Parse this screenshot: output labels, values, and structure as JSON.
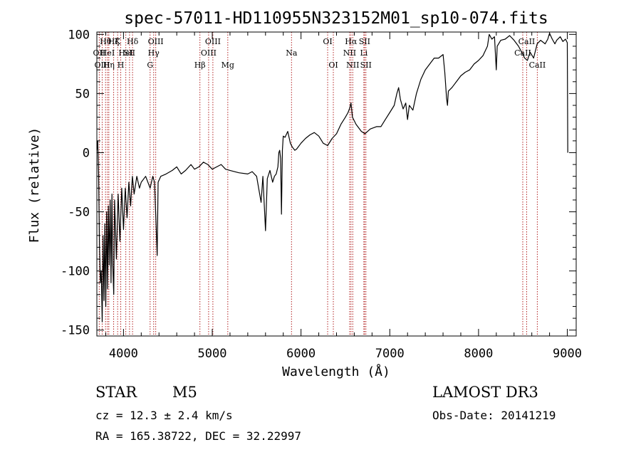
{
  "chart_data": {
    "type": "line",
    "title": "spec-57011-HD110955N323152M01_sp10-074.fits",
    "xlabel": "Wavelength (Å)",
    "ylabel": "Flux (relative)",
    "xlim": [
      3700,
      9100
    ],
    "ylim": [
      -155,
      102
    ],
    "xticks": [
      4000,
      5000,
      6000,
      7000,
      8000,
      9000
    ],
    "yticks": [
      -150,
      -100,
      -50,
      0,
      50,
      100
    ],
    "line_color": "#000000",
    "marker_color": "#b22222",
    "series": [
      {
        "name": "flux",
        "points": [
          [
            3700,
            2
          ],
          [
            3710,
            10
          ],
          [
            3720,
            -20
          ],
          [
            3730,
            -80
          ],
          [
            3740,
            -110
          ],
          [
            3750,
            -100
          ],
          [
            3760,
            -143
          ],
          [
            3770,
            -70
          ],
          [
            3780,
            -125
          ],
          [
            3790,
            -60
          ],
          [
            3800,
            -130
          ],
          [
            3810,
            -50
          ],
          [
            3820,
            -115
          ],
          [
            3830,
            -45
          ],
          [
            3840,
            -95
          ],
          [
            3850,
            -40
          ],
          [
            3860,
            -110
          ],
          [
            3870,
            -35
          ],
          [
            3880,
            -95
          ],
          [
            3890,
            -120
          ],
          [
            3900,
            -40
          ],
          [
            3920,
            -90
          ],
          [
            3940,
            -35
          ],
          [
            3960,
            -75
          ],
          [
            3980,
            -30
          ],
          [
            4000,
            -65
          ],
          [
            4020,
            -30
          ],
          [
            4040,
            -55
          ],
          [
            4060,
            -25
          ],
          [
            4080,
            -45
          ],
          [
            4100,
            -20
          ],
          [
            4120,
            -35
          ],
          [
            4150,
            -20
          ],
          [
            4180,
            -30
          ],
          [
            4200,
            -25
          ],
          [
            4250,
            -20
          ],
          [
            4300,
            -30
          ],
          [
            4330,
            -20
          ],
          [
            4350,
            -25
          ],
          [
            4380,
            -87
          ],
          [
            4390,
            -25
          ],
          [
            4420,
            -20
          ],
          [
            4480,
            -18
          ],
          [
            4550,
            -15
          ],
          [
            4600,
            -12
          ],
          [
            4650,
            -18
          ],
          [
            4700,
            -15
          ],
          [
            4760,
            -10
          ],
          [
            4800,
            -14
          ],
          [
            4850,
            -12
          ],
          [
            4900,
            -8
          ],
          [
            4950,
            -10
          ],
          [
            5000,
            -14
          ],
          [
            5050,
            -12
          ],
          [
            5100,
            -10
          ],
          [
            5150,
            -14
          ],
          [
            5200,
            -15
          ],
          [
            5300,
            -17
          ],
          [
            5400,
            -18
          ],
          [
            5450,
            -16
          ],
          [
            5500,
            -20
          ],
          [
            5550,
            -42
          ],
          [
            5570,
            -20
          ],
          [
            5600,
            -66
          ],
          [
            5620,
            -22
          ],
          [
            5650,
            -15
          ],
          [
            5680,
            -25
          ],
          [
            5700,
            -20
          ],
          [
            5720,
            -18
          ],
          [
            5740,
            -12
          ],
          [
            5750,
            0
          ],
          [
            5760,
            2
          ],
          [
            5770,
            -5
          ],
          [
            5780,
            -52
          ],
          [
            5790,
            2
          ],
          [
            5800,
            14
          ],
          [
            5820,
            13
          ],
          [
            5850,
            18
          ],
          [
            5880,
            8
          ],
          [
            5900,
            5
          ],
          [
            5930,
            2
          ],
          [
            5950,
            3
          ],
          [
            6000,
            8
          ],
          [
            6050,
            12
          ],
          [
            6100,
            15
          ],
          [
            6150,
            17
          ],
          [
            6200,
            14
          ],
          [
            6250,
            8
          ],
          [
            6300,
            6
          ],
          [
            6350,
            12
          ],
          [
            6400,
            16
          ],
          [
            6450,
            24
          ],
          [
            6500,
            30
          ],
          [
            6530,
            34
          ],
          [
            6550,
            38
          ],
          [
            6563,
            42
          ],
          [
            6580,
            30
          ],
          [
            6620,
            24
          ],
          [
            6680,
            18
          ],
          [
            6720,
            16
          ],
          [
            6780,
            20
          ],
          [
            6850,
            22
          ],
          [
            6900,
            22
          ],
          [
            6950,
            28
          ],
          [
            7000,
            34
          ],
          [
            7050,
            40
          ],
          [
            7080,
            50
          ],
          [
            7100,
            55
          ],
          [
            7120,
            45
          ],
          [
            7150,
            37
          ],
          [
            7180,
            42
          ],
          [
            7200,
            28
          ],
          [
            7220,
            40
          ],
          [
            7260,
            36
          ],
          [
            7300,
            50
          ],
          [
            7350,
            62
          ],
          [
            7400,
            70
          ],
          [
            7450,
            75
          ],
          [
            7500,
            80
          ],
          [
            7550,
            80
          ],
          [
            7600,
            83
          ],
          [
            7620,
            68
          ],
          [
            7640,
            46
          ],
          [
            7650,
            40
          ],
          [
            7660,
            52
          ],
          [
            7700,
            55
          ],
          [
            7750,
            60
          ],
          [
            7800,
            65
          ],
          [
            7850,
            68
          ],
          [
            7900,
            70
          ],
          [
            7950,
            75
          ],
          [
            8000,
            78
          ],
          [
            8050,
            82
          ],
          [
            8100,
            90
          ],
          [
            8120,
            100
          ],
          [
            8150,
            96
          ],
          [
            8180,
            98
          ],
          [
            8200,
            70
          ],
          [
            8210,
            90
          ],
          [
            8250,
            95
          ],
          [
            8300,
            96
          ],
          [
            8350,
            99
          ],
          [
            8400,
            95
          ],
          [
            8450,
            90
          ],
          [
            8500,
            83
          ],
          [
            8520,
            80
          ],
          [
            8550,
            78
          ],
          [
            8580,
            85
          ],
          [
            8620,
            80
          ],
          [
            8660,
            92
          ],
          [
            8700,
            95
          ],
          [
            8750,
            92
          ],
          [
            8780,
            96
          ],
          [
            8800,
            101
          ],
          [
            8830,
            96
          ],
          [
            8860,
            92
          ],
          [
            8880,
            95
          ],
          [
            8920,
            98
          ],
          [
            8950,
            94
          ],
          [
            8980,
            96
          ],
          [
            9000,
            93
          ],
          [
            9005,
            0
          ]
        ]
      }
    ],
    "line_markers": [
      {
        "wavelength": 3727,
        "label": "OII",
        "row": 1
      },
      {
        "wavelength": 3760,
        "label": "OIII",
        "row": 2
      },
      {
        "wavelength": 3798,
        "label": "Hθ",
        "row": 0
      },
      {
        "wavelength": 3820,
        "label": "HeI",
        "row": 1
      },
      {
        "wavelength": 3835,
        "label": "Hη",
        "row": 2
      },
      {
        "wavelength": 3889,
        "label": "Hζ",
        "row": 0
      },
      {
        "wavelength": 3934,
        "label": "K",
        "row": 0
      },
      {
        "wavelength": 3969,
        "label": "H",
        "row": 2
      },
      {
        "wavelength": 4026,
        "label": "HeI",
        "row": 1
      },
      {
        "wavelength": 4068,
        "label": "SII",
        "row": 1
      },
      {
        "wavelength": 4102,
        "label": "Hδ",
        "row": 0
      },
      {
        "wavelength": 4300,
        "label": "G",
        "row": 2
      },
      {
        "wavelength": 4340,
        "label": "Hγ",
        "row": 1
      },
      {
        "wavelength": 4363,
        "label": "OIII",
        "row": 0
      },
      {
        "wavelength": 4861,
        "label": "Hβ",
        "row": 2
      },
      {
        "wavelength": 4959,
        "label": "OIII",
        "row": 1
      },
      {
        "wavelength": 5007,
        "label": "OIII",
        "row": 0
      },
      {
        "wavelength": 5175,
        "label": "Mg",
        "row": 2
      },
      {
        "wavelength": 5893,
        "label": "Na",
        "row": 1
      },
      {
        "wavelength": 6300,
        "label": "OI",
        "row": 0
      },
      {
        "wavelength": 6364,
        "label": "OI",
        "row": 2
      },
      {
        "wavelength": 6548,
        "label": "NII",
        "row": 1
      },
      {
        "wavelength": 6563,
        "label": "Hα",
        "row": 0
      },
      {
        "wavelength": 6583,
        "label": "NII",
        "row": 2
      },
      {
        "wavelength": 6708,
        "label": "Li",
        "row": 1
      },
      {
        "wavelength": 6716,
        "label": "SII",
        "row": 0
      },
      {
        "wavelength": 6731,
        "label": "SII",
        "row": 2
      },
      {
        "wavelength": 8498,
        "label": "CaII",
        "row": 1
      },
      {
        "wavelength": 8542,
        "label": "CaII",
        "row": 0
      },
      {
        "wavelength": 8662,
        "label": "CaII",
        "row": 2
      }
    ]
  },
  "info": {
    "object_class": "STAR",
    "subclass": "M5",
    "cz_line": "cz = 12.3 ± 2.4 km/s",
    "coords_line": "RA = 165.38722, DEC =  32.22997",
    "survey": "LAMOST DR3",
    "obs_date_line": "Obs-Date: 20141219"
  }
}
